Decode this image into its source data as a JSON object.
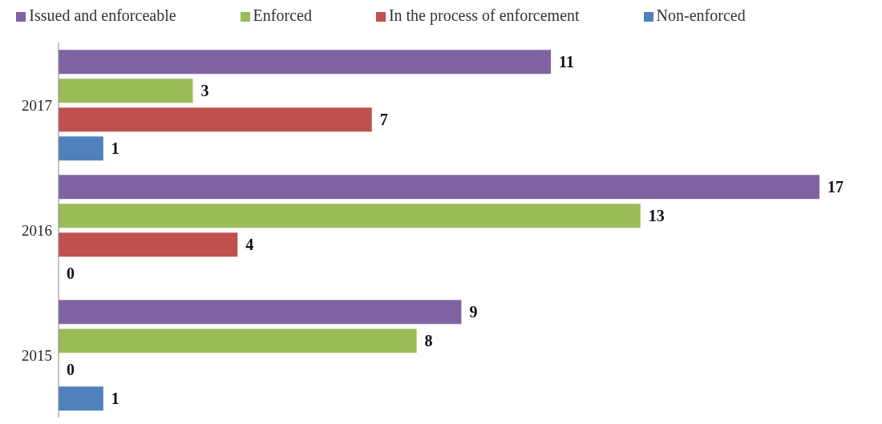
{
  "chart_data": {
    "type": "bar",
    "orientation": "horizontal",
    "categories": [
      "2017",
      "2016",
      "2015"
    ],
    "series": [
      {
        "name": "Issued and enforceable",
        "color": "#8064a2",
        "values": [
          11,
          17,
          9
        ]
      },
      {
        "name": "Enforced",
        "color": "#9bbb59",
        "values": [
          3,
          13,
          8
        ]
      },
      {
        "name": "In the process of enforcement",
        "color": "#c0504d",
        "values": [
          7,
          4,
          0
        ]
      },
      {
        "name": "Non-enforced",
        "color": "#4f81bd",
        "values": [
          1,
          0,
          1
        ]
      }
    ],
    "data_labels": true,
    "legend": "top",
    "grid": false,
    "tick_labels": "y"
  }
}
